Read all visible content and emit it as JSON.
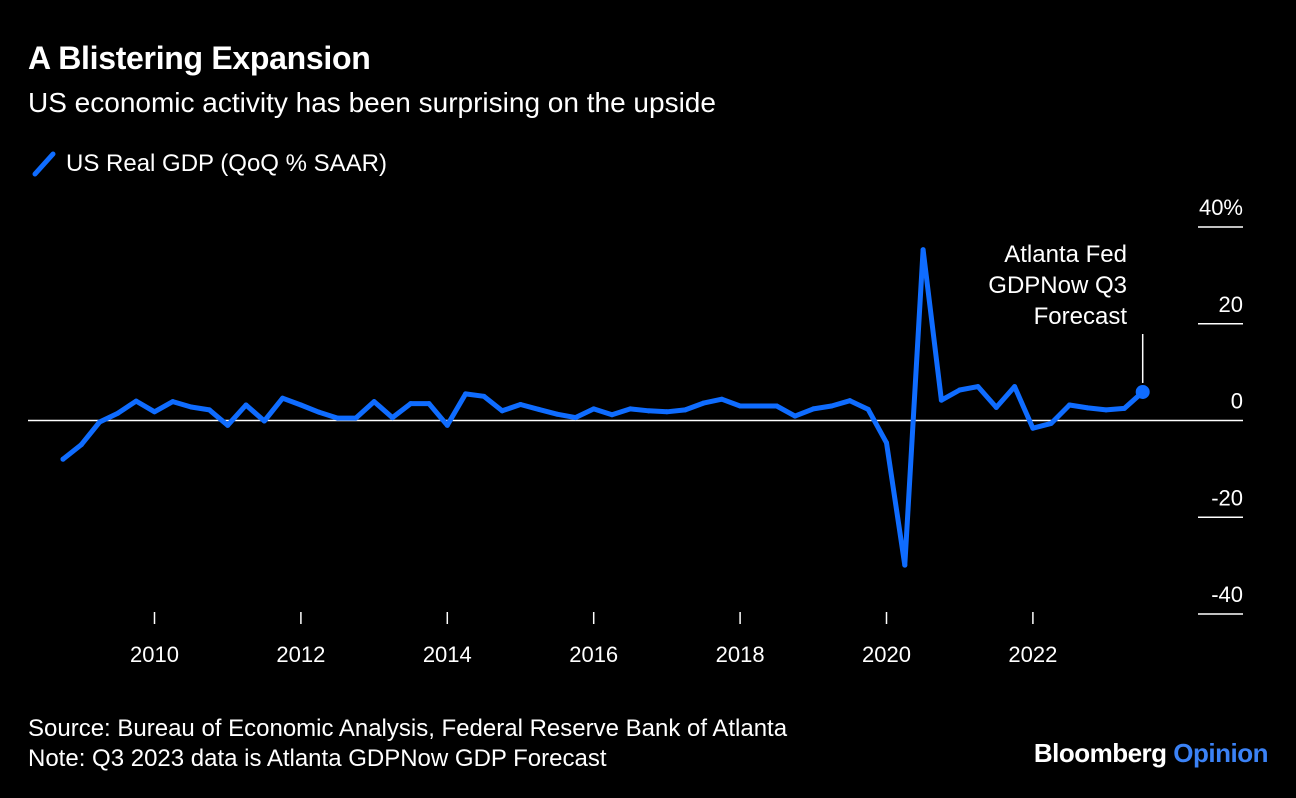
{
  "header": {
    "title": "A Blistering Expansion",
    "subtitle": "US economic activity has been surprising on the upside"
  },
  "legend": {
    "label": "US Real GDP (QoQ % SAAR)"
  },
  "footer": {
    "source": "Source: Bureau of Economic Analysis, Federal Reserve Bank of Atlanta",
    "note": "Note: Q3 2023 data is Atlanta GDPNow GDP Forecast"
  },
  "brand": {
    "name": "Bloomberg",
    "section": "Opinion"
  },
  "colors": {
    "series": "#0f6cff",
    "background": "#000000",
    "text": "#ffffff"
  },
  "chart_data": {
    "type": "line",
    "title": "A Blistering Expansion",
    "subtitle": "US economic activity has been surprising on the upside",
    "xlabel": "",
    "ylabel": "",
    "ylim": [
      -40,
      40
    ],
    "yticks": [
      40,
      20,
      0,
      -20,
      -40
    ],
    "ytick_labels": [
      "40%",
      "20",
      "0",
      "-20",
      "-40"
    ],
    "xticks": [
      2010,
      2012,
      2014,
      2016,
      2018,
      2020,
      2022
    ],
    "xtick_labels": [
      "2010",
      "2012",
      "2014",
      "2016",
      "2018",
      "2020",
      "2022"
    ],
    "legend": "top-left",
    "annotation": {
      "lines": [
        "Atlanta Fed",
        "GDPNow Q3",
        "Forecast"
      ],
      "point": "2023 Q3"
    },
    "series": [
      {
        "name": "US Real GDP (QoQ % SAAR)",
        "x": [
          "2008 Q4",
          "2009 Q1",
          "2009 Q2",
          "2009 Q3",
          "2009 Q4",
          "2010 Q1",
          "2010 Q2",
          "2010 Q3",
          "2010 Q4",
          "2011 Q1",
          "2011 Q2",
          "2011 Q3",
          "2011 Q4",
          "2012 Q1",
          "2012 Q2",
          "2012 Q3",
          "2012 Q4",
          "2013 Q1",
          "2013 Q2",
          "2013 Q3",
          "2013 Q4",
          "2014 Q1",
          "2014 Q2",
          "2014 Q3",
          "2014 Q4",
          "2015 Q1",
          "2015 Q2",
          "2015 Q3",
          "2015 Q4",
          "2016 Q1",
          "2016 Q2",
          "2016 Q3",
          "2016 Q4",
          "2017 Q1",
          "2017 Q2",
          "2017 Q3",
          "2017 Q4",
          "2018 Q1",
          "2018 Q2",
          "2018 Q3",
          "2018 Q4",
          "2019 Q1",
          "2019 Q2",
          "2019 Q3",
          "2019 Q4",
          "2020 Q1",
          "2020 Q2",
          "2020 Q3",
          "2020 Q4",
          "2021 Q1",
          "2021 Q2",
          "2021 Q3",
          "2021 Q4",
          "2022 Q1",
          "2022 Q2",
          "2022 Q3",
          "2022 Q4",
          "2023 Q1",
          "2023 Q2",
          "2023 Q3"
        ],
        "values": [
          -8.0,
          -5.0,
          -0.3,
          1.5,
          4.0,
          1.8,
          3.9,
          2.8,
          2.2,
          -1.0,
          3.2,
          -0.1,
          4.6,
          3.2,
          1.7,
          0.5,
          0.5,
          3.9,
          0.6,
          3.5,
          3.5,
          -1.0,
          5.5,
          5.0,
          2.0,
          3.3,
          2.3,
          1.3,
          0.6,
          2.4,
          1.2,
          2.4,
          2.0,
          1.8,
          2.2,
          3.6,
          4.4,
          3.0,
          3.0,
          3.0,
          0.9,
          2.4,
          3.0,
          4.1,
          2.3,
          -4.6,
          -29.9,
          35.3,
          4.2,
          6.3,
          7.0,
          2.7,
          7.0,
          -1.6,
          -0.6,
          3.2,
          2.6,
          2.2,
          2.5,
          5.9
        ]
      }
    ]
  }
}
